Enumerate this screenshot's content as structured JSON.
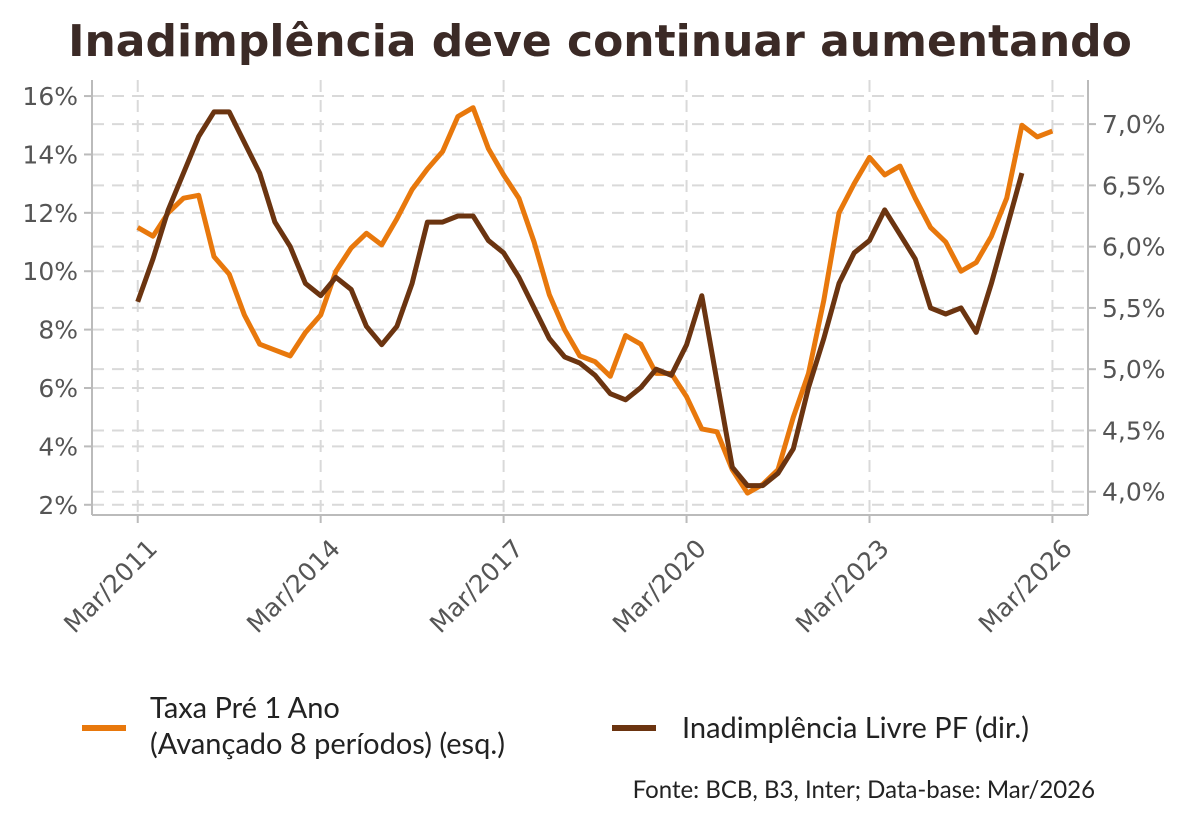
{
  "chart_data": {
    "type": "line",
    "title": "Inadimplência deve continuar aumentando",
    "source": "Fonte: BCB, B3, Inter; Data-base: Mar/2026",
    "x": [
      "2011-03",
      "2011-06",
      "2011-09",
      "2011-12",
      "2012-03",
      "2012-06",
      "2012-09",
      "2012-12",
      "2013-03",
      "2013-06",
      "2013-09",
      "2013-12",
      "2014-03",
      "2014-06",
      "2014-09",
      "2014-12",
      "2015-03",
      "2015-06",
      "2015-09",
      "2015-12",
      "2016-03",
      "2016-06",
      "2016-09",
      "2016-12",
      "2017-03",
      "2017-06",
      "2017-09",
      "2017-12",
      "2018-03",
      "2018-06",
      "2018-09",
      "2018-12",
      "2019-03",
      "2019-06",
      "2019-09",
      "2019-12",
      "2020-03",
      "2020-06",
      "2020-09",
      "2020-12",
      "2021-03",
      "2021-06",
      "2021-09",
      "2021-12",
      "2022-03",
      "2022-06",
      "2022-09",
      "2022-12",
      "2023-03",
      "2023-06",
      "2023-09",
      "2023-12",
      "2024-03",
      "2024-06",
      "2024-09",
      "2024-12",
      "2025-03",
      "2025-06",
      "2025-09",
      "2025-12",
      "2026-03"
    ],
    "series": [
      {
        "name": "Taxa Pré 1 Ano\n(Avançado 8 períodos) (esq.)",
        "color": "#e8780c",
        "axis": "y",
        "values": [
          11.5,
          11.2,
          12.0,
          12.5,
          12.6,
          10.5,
          9.9,
          8.5,
          7.5,
          7.3,
          7.1,
          7.9,
          8.5,
          10.0,
          10.8,
          11.3,
          10.9,
          11.8,
          12.8,
          13.5,
          14.1,
          15.3,
          15.6,
          14.2,
          13.3,
          12.5,
          11.0,
          9.2,
          8.0,
          7.1,
          6.9,
          6.4,
          7.8,
          7.5,
          6.5,
          6.5,
          5.7,
          4.6,
          4.5,
          3.2,
          2.4,
          2.7,
          3.2,
          5.0,
          6.5,
          9.0,
          12.0,
          13.0,
          13.9,
          13.3,
          13.6,
          12.5,
          11.5,
          11.0,
          10.0,
          10.3,
          11.2,
          12.5,
          15.0,
          14.6,
          14.8
        ]
      },
      {
        "name": "Inadimplência Livre PF (dir.)",
        "color": "#6b3410",
        "axis": "y2",
        "values": [
          5.55,
          5.9,
          6.3,
          6.6,
          6.9,
          7.1,
          7.1,
          6.85,
          6.6,
          6.2,
          6.0,
          5.7,
          5.6,
          5.75,
          5.65,
          5.35,
          5.2,
          5.35,
          5.7,
          6.2,
          6.2,
          6.25,
          6.25,
          6.05,
          5.95,
          5.75,
          5.5,
          5.25,
          5.1,
          5.05,
          4.95,
          4.8,
          4.75,
          4.85,
          5.0,
          4.95,
          5.2,
          5.6,
          4.9,
          4.2,
          4.05,
          4.05,
          4.15,
          4.35,
          4.85,
          5.25,
          5.7,
          5.95,
          6.05,
          6.3,
          6.1,
          5.9,
          5.5,
          5.45,
          5.5,
          5.3,
          5.7,
          6.15,
          6.6,
          null,
          null
        ]
      }
    ],
    "xlim": [
      "2010-06",
      "2026-10"
    ],
    "xticks": [
      {
        "value": "2011-03",
        "label": "Mar/2011"
      },
      {
        "value": "2014-03",
        "label": "Mar/2014"
      },
      {
        "value": "2017-03",
        "label": "Mar/2017"
      },
      {
        "value": "2020-03",
        "label": "Mar/2020"
      },
      {
        "value": "2023-03",
        "label": "Mar/2023"
      },
      {
        "value": "2026-03",
        "label": "Mar/2026"
      }
    ],
    "ylim": [
      1.65,
      16.55
    ],
    "yticks": [
      {
        "value": 2,
        "label": "2%"
      },
      {
        "value": 4,
        "label": "4%"
      },
      {
        "value": 6,
        "label": "6%"
      },
      {
        "value": 8,
        "label": "8%"
      },
      {
        "value": 10,
        "label": "10%"
      },
      {
        "value": 12,
        "label": "12%"
      },
      {
        "value": 14,
        "label": "14%"
      },
      {
        "value": 16,
        "label": "16%"
      }
    ],
    "y2lim": [
      3.81,
      7.36
    ],
    "y2ticks": [
      {
        "value": 4,
        "label": "4,0%"
      },
      {
        "value": 4.5,
        "label": "4,5%"
      },
      {
        "value": 5,
        "label": "5,0%"
      },
      {
        "value": 5.5,
        "label": "5,5%"
      },
      {
        "value": 6,
        "label": "6,0%"
      },
      {
        "value": 6.5,
        "label": "6,5%"
      },
      {
        "value": 7,
        "label": "7,0%"
      }
    ],
    "grid": true
  }
}
